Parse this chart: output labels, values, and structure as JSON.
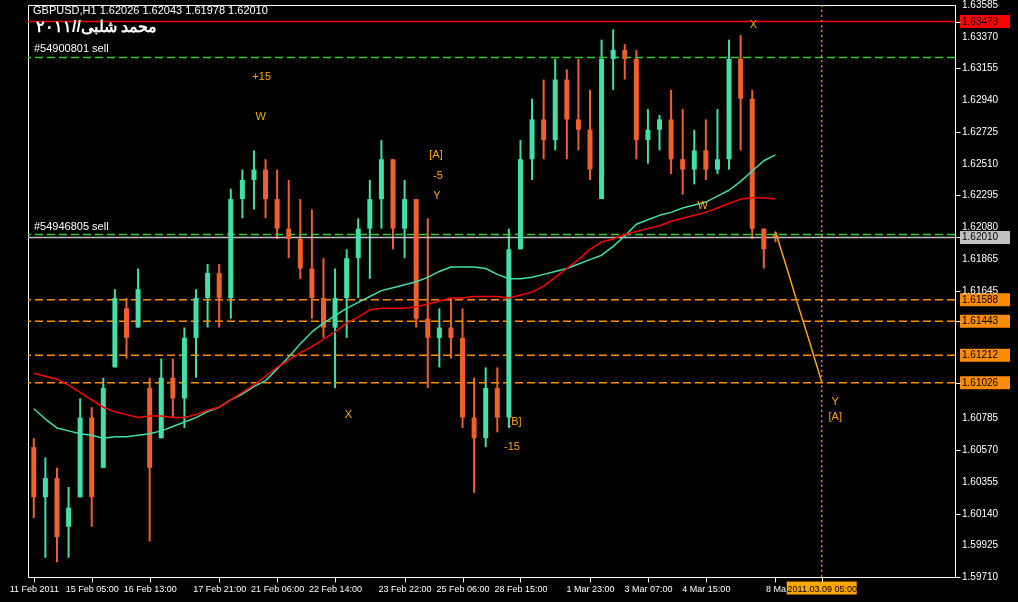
{
  "chart_data": {
    "type": "candlestick",
    "title": "GBPUSD,H1  1.62026 1.62043 1.61978 1.62010",
    "categories": [
      "11 Feb 2011",
      null,
      null,
      null,
      null,
      "15 Feb 05:00",
      null,
      null,
      null,
      null,
      "16 Feb 13:00",
      null,
      null,
      null,
      null,
      null,
      "17 Feb 21:00",
      null,
      null,
      null,
      null,
      "21 Feb 06:00",
      null,
      null,
      null,
      null,
      "22 Feb 14:00",
      null,
      null,
      null,
      null,
      null,
      "23 Feb 22:00",
      null,
      null,
      null,
      null,
      "25 Feb 06:00",
      null,
      null,
      null,
      null,
      "28 Feb 15:00",
      null,
      null,
      null,
      null,
      null,
      "1 Mar 23:00",
      null,
      null,
      null,
      null,
      "3 Mar 07:00",
      null,
      null,
      null,
      null,
      "4 Mar 15:00",
      null,
      null,
      null,
      null,
      null,
      "8 Ma",
      null,
      null,
      null,
      "2011.03.09 05:00",
      null,
      null,
      null,
      null,
      null,
      null,
      null,
      null,
      null,
      null,
      null
    ],
    "ohlc": [
      [
        1.6059,
        1.6065,
        1.6011,
        1.6025
      ],
      [
        1.6025,
        1.6052,
        1.5984,
        1.6038
      ],
      [
        1.6038,
        1.6045,
        1.5981,
        1.5998
      ],
      [
        1.6005,
        1.6032,
        1.5984,
        1.6018
      ],
      [
        1.6025,
        1.6092,
        1.6025,
        1.6079
      ],
      [
        1.6079,
        1.6086,
        1.6005,
        1.6025
      ],
      [
        1.6045,
        1.6106,
        1.6045,
        1.6099
      ],
      [
        1.6113,
        1.6166,
        1.6113,
        1.616
      ],
      [
        1.6153,
        1.616,
        1.6119,
        1.6133
      ],
      [
        1.614,
        1.618,
        1.614,
        1.6166
      ],
      [
        1.6099,
        1.6106,
        1.5995,
        1.6045
      ],
      [
        1.6065,
        1.6119,
        1.6065,
        1.6106
      ],
      [
        1.6106,
        1.6119,
        1.6079,
        1.6092
      ],
      [
        1.6092,
        1.614,
        1.6072,
        1.6133
      ],
      [
        1.6133,
        1.6166,
        1.6106,
        1.616
      ],
      [
        1.616,
        1.6183,
        1.614,
        1.6177
      ],
      [
        1.6177,
        1.6183,
        1.614,
        1.616
      ],
      [
        1.616,
        1.6234,
        1.6146,
        1.6227
      ],
      [
        1.6227,
        1.6247,
        1.6214,
        1.624
      ],
      [
        1.624,
        1.626,
        1.622,
        1.6247
      ],
      [
        1.6247,
        1.6254,
        1.6214,
        1.6227
      ],
      [
        1.6227,
        1.6247,
        1.62,
        1.6207
      ],
      [
        1.6207,
        1.624,
        1.6187,
        1.62
      ],
      [
        1.62,
        1.6227,
        1.6173,
        1.618
      ],
      [
        1.618,
        1.622,
        1.6146,
        1.616
      ],
      [
        1.616,
        1.6187,
        1.6133,
        1.614
      ],
      [
        1.614,
        1.618,
        1.6099,
        1.616
      ],
      [
        1.616,
        1.6193,
        1.6133,
        1.6187
      ],
      [
        1.6187,
        1.6214,
        1.616,
        1.6207
      ],
      [
        1.6207,
        1.624,
        1.6173,
        1.6227
      ],
      [
        1.6227,
        1.6267,
        1.6207,
        1.6254
      ],
      [
        1.6254,
        1.6254,
        1.6193,
        1.6207
      ],
      [
        1.6207,
        1.624,
        1.6187,
        1.6227
      ],
      [
        1.6227,
        1.6227,
        1.614,
        1.6146
      ],
      [
        1.6146,
        1.6214,
        1.6099,
        1.6133
      ],
      [
        1.6133,
        1.6153,
        1.6113,
        1.614
      ],
      [
        1.614,
        1.616,
        1.6119,
        1.6133
      ],
      [
        1.6133,
        1.6153,
        1.6072,
        1.6079
      ],
      [
        1.6079,
        1.6106,
        1.6028,
        1.6065
      ],
      [
        1.6065,
        1.6113,
        1.6059,
        1.6099
      ],
      [
        1.6099,
        1.6113,
        1.6069,
        1.6079
      ],
      [
        1.6079,
        1.6207,
        1.6072,
        1.6193
      ],
      [
        1.6193,
        1.6267,
        1.6193,
        1.6254
      ],
      [
        1.6254,
        1.6295,
        1.624,
        1.6281
      ],
      [
        1.6281,
        1.6308,
        1.6254,
        1.6267
      ],
      [
        1.6267,
        1.6322,
        1.626,
        1.6308
      ],
      [
        1.6308,
        1.6315,
        1.6254,
        1.6281
      ],
      [
        1.6281,
        1.6322,
        1.626,
        1.6274
      ],
      [
        1.6274,
        1.6301,
        1.624,
        1.6247
      ],
      [
        1.6227,
        1.6335,
        1.6227,
        1.6322
      ],
      [
        1.6322,
        1.6342,
        1.6301,
        1.6328
      ],
      [
        1.6328,
        1.6332,
        1.6308,
        1.6322
      ],
      [
        1.6322,
        1.6328,
        1.6254,
        1.6267
      ],
      [
        1.6267,
        1.6288,
        1.6251,
        1.6274
      ],
      [
        1.6274,
        1.6284,
        1.626,
        1.6281
      ],
      [
        1.6281,
        1.6301,
        1.6244,
        1.6254
      ],
      [
        1.6254,
        1.6288,
        1.623,
        1.6247
      ],
      [
        1.6247,
        1.6274,
        1.6237,
        1.626
      ],
      [
        1.626,
        1.6281,
        1.624,
        1.6247
      ],
      [
        1.6247,
        1.6288,
        1.6244,
        1.6254
      ],
      [
        1.6254,
        1.6335,
        1.6247,
        1.6322
      ],
      [
        1.6322,
        1.6338,
        1.626,
        1.6295
      ],
      [
        1.6295,
        1.6301,
        1.62,
        1.6207
      ],
      [
        1.6207,
        1.6207,
        1.618,
        1.6193
      ],
      [
        1.62026,
        1.62043,
        1.61978,
        1.6201
      ],
      null,
      null,
      null,
      null,
      null,
      null,
      null,
      null,
      null,
      null,
      null,
      null,
      null,
      null,
      null
    ],
    "colors": [
      "#f0602a",
      "#40e0a8",
      "#f0602a",
      "#40e0a8",
      "#40e0a8",
      "#f0602a",
      "#40e0a8",
      "#40e0a8",
      "#f0602a",
      "#40e0a8",
      "#f0602a",
      "#40e0a8",
      "#f0602a",
      "#40e0a8",
      "#40e0a8",
      "#40e0a8",
      "#f0602a",
      "#40e0a8",
      "#40e0a8",
      "#40e0a8",
      "#f0602a",
      "#f0602a",
      "#f0602a",
      "#f0602a",
      "#f0602a",
      "#f0602a",
      "#40e0a8",
      "#40e0a8",
      "#40e0a8",
      "#40e0a8",
      "#40e0a8",
      "#f0602a",
      "#40e0a8",
      "#f0602a",
      "#f0602a",
      "#40e0a8",
      "#f0602a",
      "#f0602a",
      "#f0602a",
      "#40e0a8",
      "#f0602a",
      "#40e0a8",
      "#40e0a8",
      "#40e0a8",
      "#f0602a",
      "#40e0a8",
      "#f0602a",
      "#f0602a",
      "#f0602a",
      "#40e0a8",
      "#40e0a8",
      "#f0602a",
      "#f0602a",
      "#40e0a8",
      "#40e0a8",
      "#f0602a",
      "#f0602a",
      "#40e0a8",
      "#f0602a",
      "#40e0a8",
      "#40e0a8",
      "#f0602a",
      "#f0602a",
      "#f0602a",
      "#f0602a",
      null,
      null,
      null,
      null,
      null,
      null,
      null,
      null,
      null,
      null,
      null,
      null,
      null,
      null,
      null
    ],
    "series": [
      {
        "type": "line",
        "color": "#40e0a8",
        "values": [
          1.6085,
          1.6078,
          1.6072,
          1.607,
          1.6068,
          1.6067,
          1.6065,
          1.6066,
          1.6066,
          1.6067,
          1.6068,
          1.607,
          1.6073,
          1.6076,
          1.6079,
          1.6083,
          1.6086,
          1.6091,
          1.6095,
          1.61,
          1.6104,
          1.6112,
          1.612,
          1.6129,
          1.6137,
          1.6143,
          1.6148,
          1.6153,
          1.6157,
          1.6161,
          1.6165,
          1.6167,
          1.6169,
          1.6171,
          1.6174,
          1.6178,
          1.6181,
          1.6181,
          1.6181,
          1.618,
          1.6176,
          1.6173,
          1.6173,
          1.6174,
          1.6176,
          1.6178,
          1.618,
          1.6183,
          1.6186,
          1.6189,
          1.6195,
          1.6202,
          1.621,
          1.6213,
          1.6216,
          1.6218,
          1.6221,
          1.6223,
          1.6225,
          1.6229,
          1.6233,
          1.6239,
          1.6246,
          1.6253,
          1.6257,
          null,
          null,
          null,
          null,
          null,
          null,
          null,
          null,
          null,
          null,
          null,
          null,
          null,
          null,
          null
        ]
      },
      {
        "type": "line",
        "color": "#ff0000",
        "values": [
          1.6109,
          1.6107,
          1.6105,
          1.6101,
          1.6096,
          1.6091,
          1.6086,
          1.6083,
          1.6081,
          1.6079,
          1.608,
          1.608,
          1.6079,
          1.6079,
          1.6081,
          1.6084,
          1.6086,
          1.6091,
          1.6096,
          1.6101,
          1.6107,
          1.6113,
          1.6118,
          1.6123,
          1.6127,
          1.6132,
          1.6137,
          1.6143,
          1.6147,
          1.6152,
          1.6153,
          1.6153,
          1.6153,
          1.6154,
          1.6156,
          1.6158,
          1.616,
          1.616,
          1.6161,
          1.6161,
          1.6161,
          1.616,
          1.6162,
          1.6164,
          1.6168,
          1.6174,
          1.618,
          1.6186,
          1.6193,
          1.6198,
          1.62,
          1.6203,
          1.6205,
          1.6207,
          1.6209,
          1.6212,
          1.6214,
          1.6216,
          1.6218,
          1.6221,
          1.6224,
          1.6227,
          1.6228,
          1.6228,
          1.6227,
          null,
          null,
          null,
          null,
          null,
          null,
          null,
          null,
          null,
          null,
          null,
          null,
          null,
          null,
          null
        ]
      },
      {
        "type": "line",
        "color": "#ffa500",
        "values": [
          null,
          null,
          null,
          null,
          null,
          null,
          null,
          null,
          null,
          null,
          null,
          null,
          null,
          null,
          null,
          null,
          null,
          null,
          null,
          null,
          null,
          null,
          null,
          null,
          null,
          null,
          null,
          null,
          null,
          null,
          null,
          null,
          null,
          null,
          null,
          null,
          null,
          null,
          null,
          null,
          null,
          null,
          null,
          null,
          null,
          null,
          null,
          null,
          null,
          null,
          null,
          null,
          null,
          null,
          null,
          null,
          null,
          null,
          null,
          null,
          null,
          null,
          null,
          null,
          1.6205,
          1.618,
          1.6154,
          1.6129,
          1.6103,
          null,
          null,
          null,
          null,
          null,
          null,
          null,
          null,
          null,
          null,
          null
        ]
      }
    ],
    "ylim": [
      1.5971,
      1.63585
    ],
    "yticks": [
      1.63585,
      {
        "value": 1.6337,
        "label": "1.63370"
      },
      1.63155,
      {
        "value": 1.6294,
        "label": "1.62940"
      },
      1.62725,
      {
        "value": 1.6251,
        "label": "1.62510"
      },
      1.62295,
      {
        "value": 1.6208,
        "label": "1.62080"
      },
      1.61865,
      1.61645,
      1.60785,
      {
        "value": 1.6057,
        "label": "1.60570"
      },
      1.60355,
      {
        "value": 1.6014,
        "label": "1.60140"
      },
      1.59925,
      {
        "value": 1.5971,
        "label": "1.59710"
      },
      1.63473,
      {
        "value": 1.6201,
        "label": "1.62010"
      },
      1.61588,
      1.61443,
      1.61212,
      1.61026
    ],
    "ref_lines": [
      {
        "axis": "y",
        "value": 1.63473,
        "color": "#ff0000",
        "line_style": "solid"
      },
      {
        "axis": "y",
        "value": 1.6323,
        "label": "#54900801 sell",
        "color": "#32cd32",
        "line_style": "dashed"
      },
      {
        "axis": "y",
        "value": 1.6203,
        "label": "#54946805 sell",
        "color": "#32cd32",
        "line_style": "dashed"
      },
      {
        "axis": "y",
        "value": 1.6201,
        "color": "#c0c0c0",
        "line_style": "solid"
      },
      {
        "axis": "y",
        "value": 1.61588,
        "color": "#ff8c00",
        "line_style": "dashed"
      },
      {
        "axis": "y",
        "value": 1.61443,
        "color": "#ff8c00",
        "line_style": "dashed"
      },
      {
        "axis": "y",
        "value": 1.61212,
        "color": "#ff8c00",
        "line_style": "dashed"
      },
      {
        "axis": "y",
        "value": 1.61026,
        "color": "#ff8c00",
        "line_style": "dashed"
      },
      {
        "axis": "x",
        "value": "2011.03.09 05:00",
        "color": "#ffa500",
        "line_style": "dotted"
      }
    ],
    "annotations": [
      "محمد شلبى//٢٠١١",
      "X",
      "+15",
      "W",
      "[A]",
      "-5",
      "Y",
      "W",
      "X",
      "[B]",
      "-15",
      "Y",
      "[A]"
    ],
    "grid": false
  }
}
